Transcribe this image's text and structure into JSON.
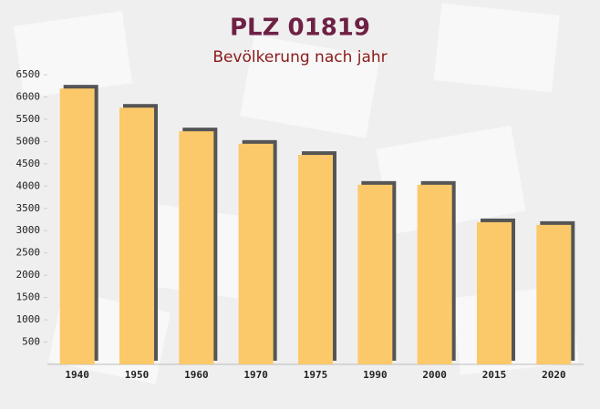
{
  "chart_data": {
    "type": "bar",
    "title": "PLZ 01819",
    "subtitle": "Bevölkerung nach jahr",
    "categories": [
      "1940",
      "1950",
      "1960",
      "1970",
      "1975",
      "1990",
      "2000",
      "2015",
      "2020"
    ],
    "values": [
      6190,
      5760,
      5230,
      4950,
      4700,
      4030,
      4030,
      3190,
      3130
    ],
    "color": "#fbc96a",
    "ylim": [
      0,
      6500
    ],
    "yticks": [
      500,
      1000,
      1500,
      2000,
      2500,
      3000,
      3500,
      4000,
      4500,
      5000,
      5500,
      6000,
      6500
    ],
    "grid": false
  }
}
